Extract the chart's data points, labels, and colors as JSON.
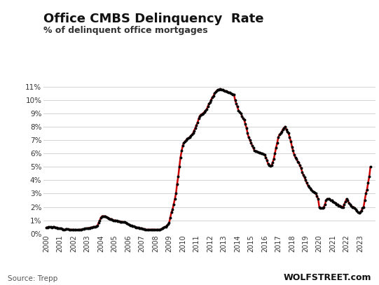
{
  "title": "Office CMBS Delinquency  Rate",
  "subtitle": "% of delinquent office mortgages",
  "source_left": "Source: Trepp",
  "source_right": "WOLFSTREET.com",
  "background_color": "#ffffff",
  "line_color_red": "#cc0000",
  "dot_color": "#000000",
  "ylim": [
    0,
    0.115
  ],
  "yticks": [
    0,
    0.01,
    0.02,
    0.03,
    0.04,
    0.05,
    0.06,
    0.07,
    0.08,
    0.09,
    0.1,
    0.11
  ],
  "ytick_labels": [
    "0%",
    "1%",
    "2%",
    "3%",
    "4%",
    "5%",
    "6%",
    "7%",
    "8%",
    "9%",
    "10%",
    "11%"
  ],
  "data": [
    [
      2000.0,
      0.0045
    ],
    [
      2000.08,
      0.0048
    ],
    [
      2000.17,
      0.005
    ],
    [
      2000.25,
      0.005
    ],
    [
      2000.33,
      0.005
    ],
    [
      2000.42,
      0.0048
    ],
    [
      2000.5,
      0.005
    ],
    [
      2000.58,
      0.005
    ],
    [
      2000.67,
      0.0047
    ],
    [
      2000.75,
      0.0045
    ],
    [
      2000.83,
      0.0043
    ],
    [
      2000.92,
      0.004
    ],
    [
      2001.0,
      0.004
    ],
    [
      2001.08,
      0.0038
    ],
    [
      2001.17,
      0.0036
    ],
    [
      2001.25,
      0.003
    ],
    [
      2001.33,
      0.003
    ],
    [
      2001.42,
      0.0033
    ],
    [
      2001.5,
      0.0035
    ],
    [
      2001.58,
      0.0033
    ],
    [
      2001.67,
      0.003
    ],
    [
      2001.75,
      0.003
    ],
    [
      2001.83,
      0.003
    ],
    [
      2001.92,
      0.003
    ],
    [
      2002.0,
      0.003
    ],
    [
      2002.08,
      0.0029
    ],
    [
      2002.17,
      0.0029
    ],
    [
      2002.25,
      0.0028
    ],
    [
      2002.33,
      0.003
    ],
    [
      2002.42,
      0.003
    ],
    [
      2002.5,
      0.003
    ],
    [
      2002.58,
      0.0032
    ],
    [
      2002.67,
      0.0033
    ],
    [
      2002.75,
      0.0035
    ],
    [
      2002.83,
      0.0038
    ],
    [
      2002.92,
      0.004
    ],
    [
      2003.0,
      0.004
    ],
    [
      2003.08,
      0.0042
    ],
    [
      2003.17,
      0.0043
    ],
    [
      2003.25,
      0.0045
    ],
    [
      2003.33,
      0.0048
    ],
    [
      2003.42,
      0.005
    ],
    [
      2003.5,
      0.005
    ],
    [
      2003.58,
      0.0053
    ],
    [
      2003.67,
      0.0055
    ],
    [
      2003.75,
      0.006
    ],
    [
      2003.83,
      0.008
    ],
    [
      2003.92,
      0.01
    ],
    [
      2004.0,
      0.012
    ],
    [
      2004.08,
      0.013
    ],
    [
      2004.17,
      0.013
    ],
    [
      2004.25,
      0.013
    ],
    [
      2004.33,
      0.013
    ],
    [
      2004.42,
      0.0125
    ],
    [
      2004.5,
      0.012
    ],
    [
      2004.58,
      0.0115
    ],
    [
      2004.67,
      0.011
    ],
    [
      2004.75,
      0.011
    ],
    [
      2004.83,
      0.0105
    ],
    [
      2004.92,
      0.01
    ],
    [
      2005.0,
      0.01
    ],
    [
      2005.08,
      0.0098
    ],
    [
      2005.17,
      0.0096
    ],
    [
      2005.25,
      0.0095
    ],
    [
      2005.33,
      0.0092
    ],
    [
      2005.42,
      0.009
    ],
    [
      2005.5,
      0.009
    ],
    [
      2005.58,
      0.0088
    ],
    [
      2005.67,
      0.0086
    ],
    [
      2005.75,
      0.0085
    ],
    [
      2005.83,
      0.008
    ],
    [
      2005.92,
      0.0075
    ],
    [
      2006.0,
      0.007
    ],
    [
      2006.08,
      0.0065
    ],
    [
      2006.17,
      0.006
    ],
    [
      2006.25,
      0.006
    ],
    [
      2006.33,
      0.0057
    ],
    [
      2006.42,
      0.0054
    ],
    [
      2006.5,
      0.005
    ],
    [
      2006.58,
      0.0048
    ],
    [
      2006.67,
      0.0046
    ],
    [
      2006.75,
      0.0045
    ],
    [
      2006.83,
      0.0042
    ],
    [
      2006.92,
      0.004
    ],
    [
      2007.0,
      0.004
    ],
    [
      2007.08,
      0.0037
    ],
    [
      2007.17,
      0.0034
    ],
    [
      2007.25,
      0.003
    ],
    [
      2007.33,
      0.003
    ],
    [
      2007.42,
      0.003
    ],
    [
      2007.5,
      0.003
    ],
    [
      2007.58,
      0.003
    ],
    [
      2007.67,
      0.003
    ],
    [
      2007.75,
      0.003
    ],
    [
      2007.83,
      0.003
    ],
    [
      2007.92,
      0.003
    ],
    [
      2008.0,
      0.003
    ],
    [
      2008.08,
      0.003
    ],
    [
      2008.17,
      0.003
    ],
    [
      2008.25,
      0.003
    ],
    [
      2008.33,
      0.003
    ],
    [
      2008.42,
      0.0033
    ],
    [
      2008.5,
      0.004
    ],
    [
      2008.58,
      0.0045
    ],
    [
      2008.67,
      0.005
    ],
    [
      2008.75,
      0.005
    ],
    [
      2008.83,
      0.006
    ],
    [
      2008.92,
      0.007
    ],
    [
      2009.0,
      0.008
    ],
    [
      2009.08,
      0.012
    ],
    [
      2009.17,
      0.016
    ],
    [
      2009.25,
      0.018
    ],
    [
      2009.33,
      0.022
    ],
    [
      2009.42,
      0.026
    ],
    [
      2009.5,
      0.03
    ],
    [
      2009.58,
      0.037
    ],
    [
      2009.67,
      0.043
    ],
    [
      2009.75,
      0.05
    ],
    [
      2009.83,
      0.057
    ],
    [
      2009.92,
      0.062
    ],
    [
      2010.0,
      0.066
    ],
    [
      2010.08,
      0.068
    ],
    [
      2010.17,
      0.069
    ],
    [
      2010.25,
      0.07
    ],
    [
      2010.33,
      0.071
    ],
    [
      2010.42,
      0.0715
    ],
    [
      2010.5,
      0.072
    ],
    [
      2010.58,
      0.073
    ],
    [
      2010.67,
      0.074
    ],
    [
      2010.75,
      0.075
    ],
    [
      2010.83,
      0.077
    ],
    [
      2010.92,
      0.079
    ],
    [
      2011.0,
      0.081
    ],
    [
      2011.08,
      0.083
    ],
    [
      2011.17,
      0.086
    ],
    [
      2011.25,
      0.088
    ],
    [
      2011.33,
      0.089
    ],
    [
      2011.42,
      0.0895
    ],
    [
      2011.5,
      0.09
    ],
    [
      2011.58,
      0.091
    ],
    [
      2011.67,
      0.092
    ],
    [
      2011.75,
      0.093
    ],
    [
      2011.83,
      0.095
    ],
    [
      2011.92,
      0.097
    ],
    [
      2012.0,
      0.098
    ],
    [
      2012.08,
      0.1
    ],
    [
      2012.17,
      0.102
    ],
    [
      2012.25,
      0.103
    ],
    [
      2012.33,
      0.105
    ],
    [
      2012.42,
      0.106
    ],
    [
      2012.5,
      0.107
    ],
    [
      2012.58,
      0.1075
    ],
    [
      2012.67,
      0.1078
    ],
    [
      2012.75,
      0.108
    ],
    [
      2012.83,
      0.1078
    ],
    [
      2012.92,
      0.1075
    ],
    [
      2013.0,
      0.107
    ],
    [
      2013.08,
      0.1068
    ],
    [
      2013.17,
      0.1065
    ],
    [
      2013.25,
      0.106
    ],
    [
      2013.33,
      0.1058
    ],
    [
      2013.42,
      0.1055
    ],
    [
      2013.5,
      0.105
    ],
    [
      2013.58,
      0.1045
    ],
    [
      2013.67,
      0.1042
    ],
    [
      2013.75,
      0.104
    ],
    [
      2013.83,
      0.1
    ],
    [
      2013.92,
      0.097
    ],
    [
      2014.0,
      0.095
    ],
    [
      2014.08,
      0.092
    ],
    [
      2014.17,
      0.091
    ],
    [
      2014.25,
      0.09
    ],
    [
      2014.33,
      0.088
    ],
    [
      2014.42,
      0.086
    ],
    [
      2014.5,
      0.085
    ],
    [
      2014.58,
      0.082
    ],
    [
      2014.67,
      0.079
    ],
    [
      2014.75,
      0.075
    ],
    [
      2014.83,
      0.072
    ],
    [
      2014.92,
      0.07
    ],
    [
      2015.0,
      0.068
    ],
    [
      2015.08,
      0.066
    ],
    [
      2015.17,
      0.064
    ],
    [
      2015.25,
      0.062
    ],
    [
      2015.33,
      0.0618
    ],
    [
      2015.42,
      0.0615
    ],
    [
      2015.5,
      0.061
    ],
    [
      2015.58,
      0.0608
    ],
    [
      2015.67,
      0.0605
    ],
    [
      2015.75,
      0.06
    ],
    [
      2015.83,
      0.0598
    ],
    [
      2015.92,
      0.0595
    ],
    [
      2016.0,
      0.059
    ],
    [
      2016.08,
      0.057
    ],
    [
      2016.17,
      0.055
    ],
    [
      2016.25,
      0.052
    ],
    [
      2016.33,
      0.051
    ],
    [
      2016.42,
      0.0508
    ],
    [
      2016.5,
      0.051
    ],
    [
      2016.58,
      0.053
    ],
    [
      2016.67,
      0.056
    ],
    [
      2016.75,
      0.06
    ],
    [
      2016.83,
      0.064
    ],
    [
      2016.92,
      0.068
    ],
    [
      2017.0,
      0.072
    ],
    [
      2017.08,
      0.074
    ],
    [
      2017.17,
      0.075
    ],
    [
      2017.25,
      0.076
    ],
    [
      2017.33,
      0.078
    ],
    [
      2017.42,
      0.079
    ],
    [
      2017.5,
      0.08
    ],
    [
      2017.58,
      0.078
    ],
    [
      2017.67,
      0.076
    ],
    [
      2017.75,
      0.075
    ],
    [
      2017.83,
      0.072
    ],
    [
      2017.92,
      0.069
    ],
    [
      2018.0,
      0.065
    ],
    [
      2018.08,
      0.062
    ],
    [
      2018.17,
      0.059
    ],
    [
      2018.25,
      0.057
    ],
    [
      2018.33,
      0.056
    ],
    [
      2018.42,
      0.054
    ],
    [
      2018.5,
      0.053
    ],
    [
      2018.58,
      0.051
    ],
    [
      2018.67,
      0.049
    ],
    [
      2018.75,
      0.046
    ],
    [
      2018.83,
      0.044
    ],
    [
      2018.92,
      0.042
    ],
    [
      2019.0,
      0.04
    ],
    [
      2019.08,
      0.038
    ],
    [
      2019.17,
      0.036
    ],
    [
      2019.25,
      0.035
    ],
    [
      2019.33,
      0.034
    ],
    [
      2019.42,
      0.033
    ],
    [
      2019.5,
      0.032
    ],
    [
      2019.58,
      0.031
    ],
    [
      2019.67,
      0.0305
    ],
    [
      2019.75,
      0.03
    ],
    [
      2019.83,
      0.028
    ],
    [
      2019.92,
      0.026
    ],
    [
      2020.0,
      0.02
    ],
    [
      2020.08,
      0.019
    ],
    [
      2020.17,
      0.019
    ],
    [
      2020.25,
      0.019
    ],
    [
      2020.33,
      0.02
    ],
    [
      2020.42,
      0.022
    ],
    [
      2020.5,
      0.025
    ],
    [
      2020.58,
      0.026
    ],
    [
      2020.67,
      0.026
    ],
    [
      2020.75,
      0.026
    ],
    [
      2020.83,
      0.025
    ],
    [
      2020.92,
      0.0248
    ],
    [
      2021.0,
      0.024
    ],
    [
      2021.08,
      0.0235
    ],
    [
      2021.17,
      0.023
    ],
    [
      2021.25,
      0.022
    ],
    [
      2021.33,
      0.022
    ],
    [
      2021.42,
      0.021
    ],
    [
      2021.5,
      0.021
    ],
    [
      2021.58,
      0.0205
    ],
    [
      2021.67,
      0.02
    ],
    [
      2021.75,
      0.02
    ],
    [
      2021.83,
      0.022
    ],
    [
      2021.92,
      0.024
    ],
    [
      2022.0,
      0.026
    ],
    [
      2022.08,
      0.025
    ],
    [
      2022.17,
      0.023
    ],
    [
      2022.25,
      0.022
    ],
    [
      2022.33,
      0.021
    ],
    [
      2022.42,
      0.02
    ],
    [
      2022.5,
      0.02
    ],
    [
      2022.58,
      0.019
    ],
    [
      2022.67,
      0.018
    ],
    [
      2022.75,
      0.017
    ],
    [
      2022.83,
      0.016
    ],
    [
      2022.92,
      0.0158
    ],
    [
      2023.0,
      0.016
    ],
    [
      2023.08,
      0.017
    ],
    [
      2023.17,
      0.019
    ],
    [
      2023.25,
      0.02
    ],
    [
      2023.33,
      0.025
    ],
    [
      2023.42,
      0.03
    ],
    [
      2023.5,
      0.033
    ],
    [
      2023.58,
      0.038
    ],
    [
      2023.67,
      0.043
    ],
    [
      2023.75,
      0.05
    ]
  ],
  "xtick_positions": [
    2000,
    2001,
    2002,
    2003,
    2004,
    2005,
    2006,
    2007,
    2008,
    2009,
    2010,
    2011,
    2012,
    2013,
    2014,
    2015,
    2016,
    2017,
    2018,
    2019,
    2020,
    2021,
    2022,
    2023
  ],
  "xtick_labels": [
    "2000",
    "2001",
    "2002",
    "2003",
    "2004",
    "2005",
    "2006",
    "2007",
    "2008",
    "2009",
    "2010",
    "2011",
    "2012",
    "2013",
    "2014",
    "2015",
    "2016",
    "2017",
    "2018",
    "2019",
    "2020",
    "2021",
    "2022",
    "2023"
  ]
}
